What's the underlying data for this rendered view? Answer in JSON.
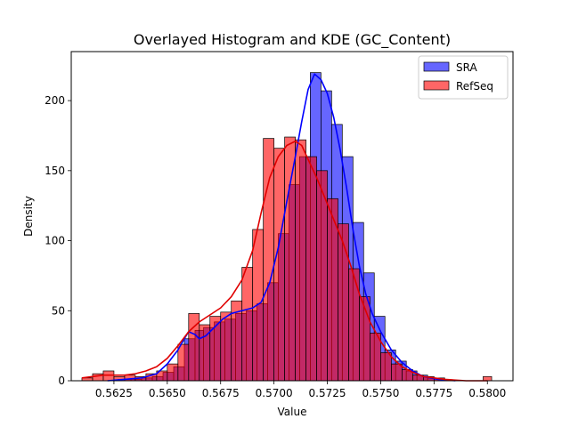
{
  "chart_data": {
    "type": "histogram",
    "title": "Overlayed Histogram and KDE (GC_Content)",
    "xlabel": "Value",
    "ylabel": "Density",
    "xlim": [
      0.5605,
      0.5812
    ],
    "ylim": [
      0,
      235
    ],
    "x_ticks": [
      0.5625,
      0.565,
      0.5675,
      0.57,
      0.5725,
      0.575,
      0.5775,
      0.58
    ],
    "x_tick_labels": [
      "0.5625",
      "0.5650",
      "0.5675",
      "0.5700",
      "0.5725",
      "0.5750",
      "0.5775",
      "0.5800"
    ],
    "y_ticks": [
      0,
      50,
      100,
      150,
      200
    ],
    "y_tick_labels": [
      "0",
      "50",
      "100",
      "150",
      "200"
    ],
    "legend_position": "top-right",
    "grid": false,
    "series": [
      {
        "name": "SRA",
        "color": "#0000ff",
        "fill": "rgba(0,0,255,0.6)",
        "kde_color": "#0000ff",
        "bins": [
          [
            0.5627,
            0.5633,
            1
          ],
          [
            0.5633,
            0.5638,
            1
          ],
          [
            0.5638,
            0.5643,
            2
          ],
          [
            0.5643,
            0.5648,
            3
          ],
          [
            0.5648,
            0.5653,
            6
          ],
          [
            0.5653,
            0.5658,
            10
          ],
          [
            0.5658,
            0.5663,
            30
          ],
          [
            0.5663,
            0.5667,
            36
          ],
          [
            0.5667,
            0.5672,
            38
          ],
          [
            0.5672,
            0.5677,
            42
          ],
          [
            0.5677,
            0.5682,
            44
          ],
          [
            0.5682,
            0.5687,
            48
          ],
          [
            0.5687,
            0.5692,
            50
          ],
          [
            0.5692,
            0.5697,
            55
          ],
          [
            0.5697,
            0.5702,
            70
          ],
          [
            0.5702,
            0.5707,
            105
          ],
          [
            0.5707,
            0.5712,
            140
          ],
          [
            0.5712,
            0.5717,
            160
          ],
          [
            0.5717,
            0.5722,
            220
          ],
          [
            0.5722,
            0.5727,
            207
          ],
          [
            0.5727,
            0.5732,
            183
          ],
          [
            0.5732,
            0.5737,
            160
          ],
          [
            0.5737,
            0.5742,
            113
          ],
          [
            0.5742,
            0.5747,
            77
          ],
          [
            0.5747,
            0.5752,
            46
          ],
          [
            0.5752,
            0.5757,
            22
          ],
          [
            0.5757,
            0.5762,
            14
          ],
          [
            0.5762,
            0.5767,
            7
          ],
          [
            0.5767,
            0.5772,
            4
          ],
          [
            0.5772,
            0.5777,
            2
          ],
          [
            0.5777,
            0.5782,
            1
          ]
        ],
        "kde": [
          [
            0.5622,
            0
          ],
          [
            0.563,
            1
          ],
          [
            0.5638,
            2
          ],
          [
            0.5645,
            5
          ],
          [
            0.565,
            12
          ],
          [
            0.5655,
            22
          ],
          [
            0.5658,
            30
          ],
          [
            0.566,
            35
          ],
          [
            0.5663,
            33
          ],
          [
            0.5665,
            30
          ],
          [
            0.5668,
            32
          ],
          [
            0.5672,
            38
          ],
          [
            0.5676,
            44
          ],
          [
            0.568,
            48
          ],
          [
            0.5685,
            50
          ],
          [
            0.569,
            52
          ],
          [
            0.5694,
            56
          ],
          [
            0.5698,
            70
          ],
          [
            0.5702,
            95
          ],
          [
            0.5706,
            128
          ],
          [
            0.571,
            160
          ],
          [
            0.5713,
            185
          ],
          [
            0.5716,
            208
          ],
          [
            0.5719,
            219
          ],
          [
            0.5722,
            215
          ],
          [
            0.5725,
            205
          ],
          [
            0.5728,
            188
          ],
          [
            0.5731,
            165
          ],
          [
            0.5734,
            138
          ],
          [
            0.5737,
            108
          ],
          [
            0.574,
            82
          ],
          [
            0.5743,
            62
          ],
          [
            0.5746,
            48
          ],
          [
            0.575,
            35
          ],
          [
            0.5755,
            22
          ],
          [
            0.576,
            13
          ],
          [
            0.5765,
            7
          ],
          [
            0.577,
            3
          ],
          [
            0.5777,
            1
          ],
          [
            0.5785,
            0
          ]
        ]
      },
      {
        "name": "RefSeq",
        "color": "#ff0000",
        "fill": "rgba(255,0,0,0.6)",
        "kde_color": "#e00000",
        "bins": [
          [
            0.561,
            0.5615,
            2
          ],
          [
            0.5615,
            0.562,
            5
          ],
          [
            0.562,
            0.5625,
            7
          ],
          [
            0.5625,
            0.563,
            3
          ],
          [
            0.563,
            0.5635,
            4
          ],
          [
            0.5635,
            0.564,
            3
          ],
          [
            0.564,
            0.5645,
            5
          ],
          [
            0.5645,
            0.565,
            7
          ],
          [
            0.565,
            0.5655,
            12
          ],
          [
            0.5655,
            0.566,
            26
          ],
          [
            0.566,
            0.5665,
            48
          ],
          [
            0.5665,
            0.567,
            40
          ],
          [
            0.567,
            0.5675,
            46
          ],
          [
            0.5675,
            0.568,
            49
          ],
          [
            0.568,
            0.5685,
            57
          ],
          [
            0.5685,
            0.569,
            81
          ],
          [
            0.569,
            0.5695,
            108
          ],
          [
            0.5695,
            0.57,
            173
          ],
          [
            0.57,
            0.5705,
            166
          ],
          [
            0.5705,
            0.571,
            174
          ],
          [
            0.571,
            0.5715,
            172
          ],
          [
            0.5715,
            0.572,
            160
          ],
          [
            0.572,
            0.5725,
            150
          ],
          [
            0.5725,
            0.573,
            130
          ],
          [
            0.573,
            0.5735,
            112
          ],
          [
            0.5735,
            0.574,
            80
          ],
          [
            0.574,
            0.5745,
            60
          ],
          [
            0.5745,
            0.575,
            34
          ],
          [
            0.575,
            0.5755,
            20
          ],
          [
            0.5755,
            0.576,
            12
          ],
          [
            0.576,
            0.5765,
            8
          ],
          [
            0.5765,
            0.577,
            4
          ],
          [
            0.577,
            0.5775,
            3
          ],
          [
            0.5775,
            0.578,
            2
          ],
          [
            0.5798,
            0.5802,
            3
          ]
        ],
        "kde": [
          [
            0.561,
            2
          ],
          [
            0.5615,
            3
          ],
          [
            0.562,
            4
          ],
          [
            0.5625,
            4
          ],
          [
            0.563,
            4
          ],
          [
            0.5635,
            5
          ],
          [
            0.564,
            7
          ],
          [
            0.5645,
            10
          ],
          [
            0.565,
            16
          ],
          [
            0.5655,
            25
          ],
          [
            0.566,
            35
          ],
          [
            0.5665,
            42
          ],
          [
            0.567,
            47
          ],
          [
            0.5675,
            52
          ],
          [
            0.568,
            60
          ],
          [
            0.5685,
            72
          ],
          [
            0.569,
            93
          ],
          [
            0.5694,
            120
          ],
          [
            0.5698,
            145
          ],
          [
            0.5702,
            160
          ],
          [
            0.5706,
            168
          ],
          [
            0.571,
            171
          ],
          [
            0.5713,
            168
          ],
          [
            0.5716,
            158
          ],
          [
            0.572,
            145
          ],
          [
            0.5724,
            130
          ],
          [
            0.5728,
            115
          ],
          [
            0.5732,
            100
          ],
          [
            0.5736,
            82
          ],
          [
            0.574,
            62
          ],
          [
            0.5745,
            42
          ],
          [
            0.575,
            28
          ],
          [
            0.5755,
            17
          ],
          [
            0.576,
            10
          ],
          [
            0.5765,
            6
          ],
          [
            0.577,
            3
          ],
          [
            0.5775,
            2
          ],
          [
            0.578,
            1
          ],
          [
            0.579,
            0
          ],
          [
            0.58,
            0
          ]
        ]
      }
    ]
  }
}
